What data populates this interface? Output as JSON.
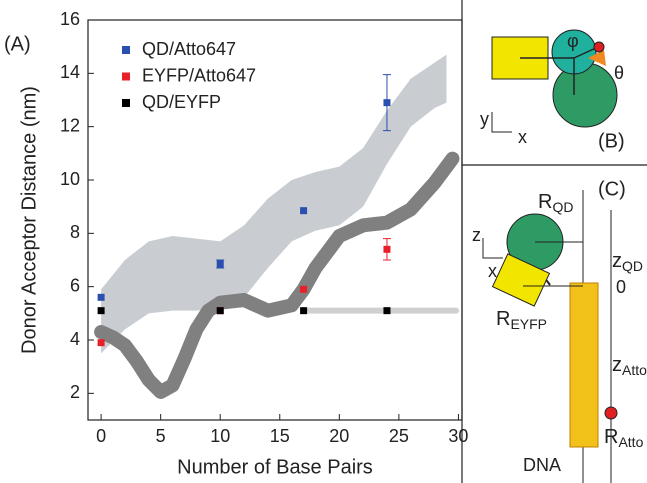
{
  "chart_data": {
    "type": "scatter",
    "panel_label": "(A)",
    "x_label": "Number of Base Pairs",
    "y_label": "Donor Acceptor Distance (nm)",
    "xlim": [
      -1.1,
      30.3
    ],
    "ylim": [
      1,
      16
    ],
    "xticks": [
      0,
      5,
      10,
      15,
      20,
      25,
      30
    ],
    "yticks": [
      2,
      4,
      6,
      8,
      10,
      12,
      14,
      16
    ],
    "legend": "upper left",
    "series": [
      {
        "name": "QD/Atto647",
        "color": "#2a4fb0",
        "x": [
          0,
          10,
          17,
          24
        ],
        "values": [
          5.6,
          6.85,
          8.85,
          12.9
        ],
        "errors": [
          0,
          0.15,
          0,
          1.05
        ]
      },
      {
        "name": "EYFP/Atto647",
        "color": "#e8202a",
        "x": [
          0,
          10,
          17,
          24
        ],
        "values": [
          3.9,
          5.1,
          5.9,
          7.4
        ],
        "errors": [
          0,
          0,
          0,
          0.4
        ]
      },
      {
        "name": "QD/EYFP",
        "color": "#000000",
        "x": [
          0,
          10,
          17,
          24
        ],
        "values": [
          5.1,
          5.1,
          5.1,
          5.1
        ],
        "errors": [
          0,
          0,
          0,
          0
        ]
      }
    ],
    "bands": [
      {
        "color": "#c9cdd2",
        "x": [
          0,
          2,
          4,
          6,
          8,
          10,
          12,
          14,
          16,
          18,
          20,
          22,
          24,
          26,
          28,
          29
        ],
        "upper": [
          5.9,
          7.0,
          7.7,
          7.9,
          7.8,
          7.7,
          8.3,
          9.3,
          10.0,
          10.3,
          10.5,
          11.2,
          12.6,
          13.8,
          14.4,
          14.7
        ],
        "lower": [
          3.5,
          4.4,
          5.0,
          5.1,
          5.1,
          5.2,
          5.6,
          6.7,
          7.7,
          8.1,
          8.3,
          9.0,
          10.6,
          12.0,
          12.7,
          12.9
        ]
      }
    ],
    "curves": [
      {
        "color": "#808080",
        "width": 14,
        "x": [
          0,
          1,
          2,
          3,
          4,
          5,
          6,
          7,
          8,
          9,
          10,
          12,
          14,
          16,
          17,
          18,
          20,
          22,
          24,
          26,
          28,
          29.5
        ],
        "values": [
          4.3,
          4.1,
          3.8,
          3.2,
          2.5,
          2.05,
          2.3,
          3.3,
          4.4,
          5.1,
          5.4,
          5.5,
          5.1,
          5.3,
          5.9,
          6.7,
          7.9,
          8.3,
          8.4,
          8.9,
          9.9,
          10.8
        ]
      },
      {
        "color": "#d0d0d0",
        "width": 6,
        "x": [
          17,
          29.8
        ],
        "values": [
          5.1,
          5.1
        ]
      }
    ]
  },
  "panels": {
    "b": {
      "label": "(B)",
      "phi": "φ",
      "theta": "θ",
      "axis_y": "y",
      "axis_x": "x"
    },
    "c": {
      "label": "(C)",
      "axis_z": "z",
      "axis_x": "x",
      "r_qd": {
        "text": "R",
        "sub": "QD"
      },
      "z_qd": {
        "text": "z",
        "sub": "QD"
      },
      "zero": "0",
      "r_eyfp": {
        "text": "R",
        "sub": "EYFP"
      },
      "z_atto": {
        "text": "z",
        "sub": "Atto"
      },
      "r_atto": {
        "text": "R",
        "sub": "Atto"
      },
      "dna": "DNA"
    }
  }
}
